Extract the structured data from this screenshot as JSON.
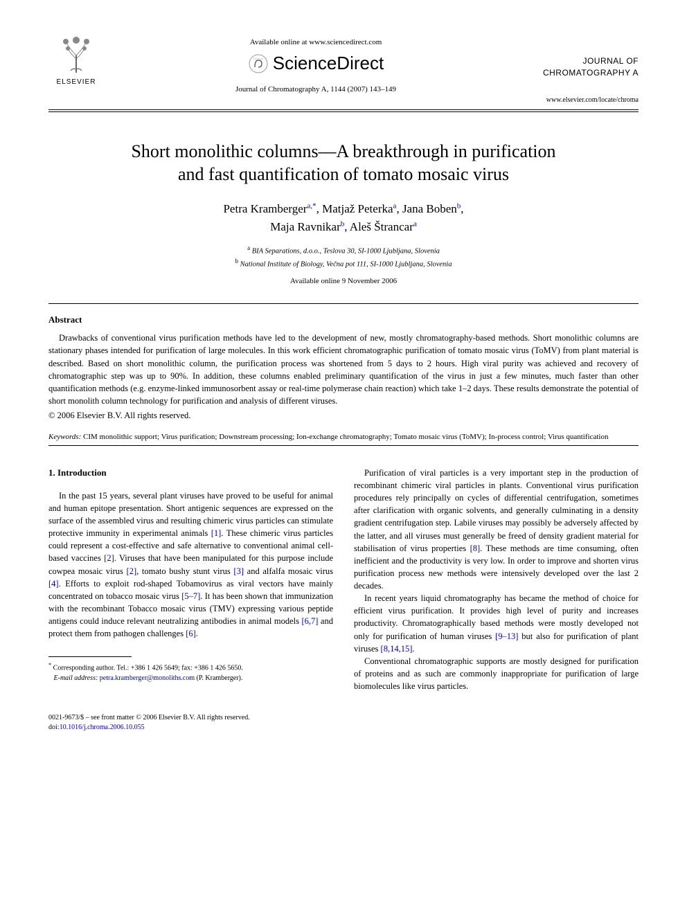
{
  "header": {
    "available_online": "Available online at www.sciencedirect.com",
    "sciencedirect": "ScienceDirect",
    "journal_ref": "Journal of Chromatography A, 1144 (2007) 143–149",
    "journal_name_1": "JOURNAL OF",
    "journal_name_2": "CHROMATOGRAPHY A",
    "journal_url": "www.elsevier.com/locate/chroma",
    "elsevier": "ELSEVIER"
  },
  "title_1": "Short monolithic columns—A breakthrough in purification",
  "title_2": "and fast quantification of tomato mosaic virus",
  "authors_line1_html": "Petra Kramberger<sup>a,</sup><sup class='star'>*</sup>, Matjaž Peterka<sup>a</sup>, Jana Boben<sup>b</sup>,",
  "authors_line2_html": "Maja Ravnikar<sup>b</sup>, Aleš Štrancar<sup>a</sup>",
  "affiliation_a": "BIA Separations, d.o.o., Teslova 30, SI-1000 Ljubljana, Slovenia",
  "affiliation_b": "National Institute of Biology, Večna pot 111, SI-1000 Ljubljana, Slovenia",
  "pub_date": "Available online 9 November 2006",
  "abstract_heading": "Abstract",
  "abstract_text": "Drawbacks of conventional virus purification methods have led to the development of new, mostly chromatography-based methods. Short monolithic columns are stationary phases intended for purification of large molecules. In this work efficient chromatographic purification of tomato mosaic virus (ToMV) from plant material is described. Based on short monolithic column, the purification process was shortened from 5 days to 2 hours. High viral purity was achieved and recovery of chromatographic step was up to 90%. In addition, these columns enabled preliminary quantification of the virus in just a few minutes, much faster than other quantification methods (e.g. enzyme-linked immunosorbent assay or real-time polymerase chain reaction) which take 1–2 days. These results demonstrate the potential of short monolith column technology for purification and analysis of different viruses.",
  "copyright": "© 2006 Elsevier B.V. All rights reserved.",
  "keywords_label": "Keywords:",
  "keywords_text": "CIM monolithic support; Virus purification; Downstream processing; Ion-exchange chromatography; Tomato mosaic virus (ToMV); In-process control; Virus quantification",
  "intro_heading": "1.  Introduction",
  "col1_para1_pre": "In the past 15 years, several plant viruses have proved to be useful for animal and human epitope presentation. Short antigenic sequences are expressed on the surface of the assembled virus and resulting chimeric virus particles can stimulate protective immunity in experimental animals ",
  "col1_para1_c1": "[1]",
  "col1_para1_m1": ". These chimeric virus particles could represent a cost-effective and safe alternative to conventional animal cell-based vaccines ",
  "col1_para1_c2": "[2]",
  "col1_para1_m2": ". Viruses that have been manipulated for this purpose include cowpea mosaic virus ",
  "col1_para1_c3": "[2]",
  "col1_para1_m3": ", tomato bushy stunt virus ",
  "col1_para1_c4": "[3]",
  "col1_para1_m4": " and alfalfa mosaic virus ",
  "col1_para1_c5": "[4]",
  "col1_para1_m5": ". Efforts to exploit rod-shaped Tobamovirus as viral vectors have mainly concentrated on tobacco mosaic virus ",
  "col1_para1_c6": "[5–7]",
  "col1_para1_m6": ". It has been shown that immunization with the recombinant Tobacco mosaic virus (TMV) expressing various peptide antigens could induce relevant neutralizing antibodies in animal models ",
  "col1_para1_c7": "[6,7]",
  "col1_para1_m7": " and protect them from pathogen challenges ",
  "col1_para1_c8": "[6]",
  "col1_para1_m8": ".",
  "col2_para1_pre": "Purification of viral particles is a very important step in the production of recombinant chimeric viral particles in plants. Conventional virus purification procedures rely principally on cycles of differential centrifugation, sometimes after clarification with organic solvents, and generally culminating in a density gradient centrifugation step. Labile viruses may possibly be adversely affected by the latter, and all viruses must generally be freed of density gradient material for stabilisation of virus properties ",
  "col2_para1_c1": "[8]",
  "col2_para1_post": ". These methods are time consuming, often inefficient and the productivity is very low. In order to improve and shorten virus purification process new methods were intensively developed over the last 2 decades.",
  "col2_para2_pre": "In recent years liquid chromatography has became the method of choice for efficient virus purification. It provides high level of purity and increases productivity. Chromatographically based methods were mostly developed not only for purification of human viruses ",
  "col2_para2_c1": "[9–13]",
  "col2_para2_m1": " but also for purification of plant viruses ",
  "col2_para2_c2": "[8,14,15]",
  "col2_para2_m2": ".",
  "col2_para3": "Conventional chromatographic supports are mostly designed for purification of proteins and as such are commonly inappropriate for purification of large biomolecules like virus particles.",
  "footnote_corr": "Corresponding author. Tel.: +386 1 426 5649; fax: +386 1 426 5650.",
  "footnote_email_label": "E-mail address:",
  "footnote_email": "petra.kramberger@monoliths.com",
  "footnote_email_post": "(P. Kramberger).",
  "footer_line1": "0021-9673/$ – see front matter © 2006 Elsevier B.V. All rights reserved.",
  "footer_doi_label": "doi:",
  "footer_doi": "10.1016/j.chroma.2006.10.055",
  "colors": {
    "text": "#000000",
    "link": "#0000cc",
    "background": "#ffffff",
    "elsevier_orange": "#ee7f00"
  }
}
